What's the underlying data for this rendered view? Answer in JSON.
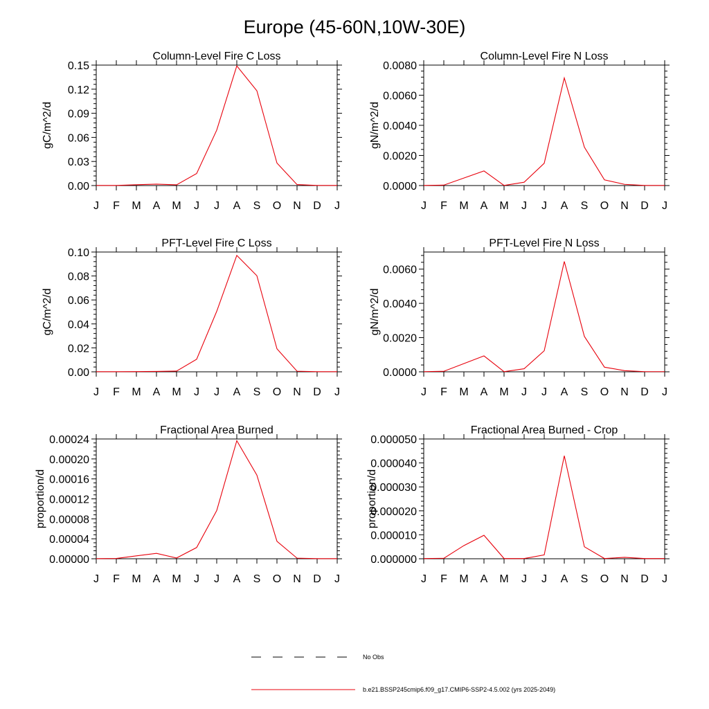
{
  "figure": {
    "title": "Europe (45-60N,10W-30E)",
    "line_color": "#e8000b",
    "axis_color": "#000000"
  },
  "chart_data": [
    {
      "type": "line",
      "title": "Column-Level Fire C Loss",
      "ylabel": "gC/m^2/d",
      "xlabel": "",
      "categories": [
        "J",
        "F",
        "M",
        "A",
        "M",
        "J",
        "J",
        "A",
        "S",
        "O",
        "N",
        "D",
        "J"
      ],
      "ylim": [
        0,
        0.15
      ],
      "yticks": [
        0,
        0.03,
        0.06,
        0.09,
        0.12,
        0.15
      ],
      "ytick_labels": [
        "0.00",
        "0.03",
        "0.06",
        "0.09",
        "0.12",
        "0.15"
      ],
      "series": [
        {
          "name": "b.e21.BSSP245cmip6.f09_g17.CMIP6-SSP2-4.5.002 (yrs 2025-2049)",
          "values": [
            0.0002,
            0.0002,
            0.001,
            0.0018,
            0.0009,
            0.015,
            0.069,
            0.149,
            0.118,
            0.028,
            0.0012,
            0.0002,
            0.0002
          ]
        }
      ]
    },
    {
      "type": "line",
      "title": "Column-Level Fire N Loss",
      "ylabel": "gN/m^2/d",
      "xlabel": "",
      "categories": [
        "J",
        "F",
        "M",
        "A",
        "M",
        "J",
        "J",
        "A",
        "S",
        "O",
        "N",
        "D",
        "J"
      ],
      "ylim": [
        0,
        0.008
      ],
      "yticks": [
        0,
        0.002,
        0.004,
        0.006,
        0.008
      ],
      "ytick_labels": [
        "0.0000",
        "0.0020",
        "0.0040",
        "0.0060",
        "0.0080"
      ],
      "series": [
        {
          "name": "b.e21.BSSP245cmip6.f09_g17.CMIP6-SSP2-4.5.002 (yrs 2025-2049)",
          "values": [
            1e-05,
            3e-05,
            0.0005,
            0.00097,
            1e-05,
            0.00022,
            0.00148,
            0.00715,
            0.00255,
            0.00038,
            8e-05,
            1e-05,
            1e-05
          ]
        }
      ]
    },
    {
      "type": "line",
      "title": "PFT-Level Fire C Loss",
      "ylabel": "gC/m^2/d",
      "xlabel": "",
      "categories": [
        "J",
        "F",
        "M",
        "A",
        "M",
        "J",
        "J",
        "A",
        "S",
        "O",
        "N",
        "D",
        "J"
      ],
      "ylim": [
        0,
        0.1
      ],
      "yticks": [
        0,
        0.02,
        0.04,
        0.06,
        0.08,
        0.1
      ],
      "ytick_labels": [
        "0.00",
        "0.02",
        "0.04",
        "0.06",
        "0.08",
        "0.10"
      ],
      "series": [
        {
          "name": "b.e21.BSSP245cmip6.f09_g17.CMIP6-SSP2-4.5.002 (yrs 2025-2049)",
          "values": [
            0.0001,
            0.0001,
            0.0002,
            0.0003,
            0.0006,
            0.0105,
            0.0505,
            0.0972,
            0.0802,
            0.0192,
            0.0005,
            0.0001,
            0.0001
          ]
        }
      ]
    },
    {
      "type": "line",
      "title": "PFT-Level Fire N Loss",
      "ylabel": "gN/m^2/d",
      "xlabel": "",
      "categories": [
        "J",
        "F",
        "M",
        "A",
        "M",
        "J",
        "J",
        "A",
        "S",
        "O",
        "N",
        "D",
        "J"
      ],
      "ylim": [
        0,
        0.007
      ],
      "yticks": [
        0,
        0.002,
        0.004,
        0.006
      ],
      "ytick_labels": [
        "0.0000",
        "0.0020",
        "0.0040",
        "0.0060"
      ],
      "series": [
        {
          "name": "b.e21.BSSP245cmip6.f09_g17.CMIP6-SSP2-4.5.002 (yrs 2025-2049)",
          "values": [
            1e-05,
            3e-05,
            0.00048,
            0.00093,
            1e-05,
            0.00018,
            0.00123,
            0.00645,
            0.00207,
            0.00027,
            7e-05,
            1e-05,
            1e-05
          ]
        }
      ]
    },
    {
      "type": "line",
      "title": "Fractional Area Burned",
      "ylabel": "proportion/d",
      "xlabel": "",
      "categories": [
        "J",
        "F",
        "M",
        "A",
        "M",
        "J",
        "J",
        "A",
        "S",
        "O",
        "N",
        "D",
        "J"
      ],
      "ylim": [
        0,
        0.00024
      ],
      "yticks": [
        0,
        4e-05,
        8e-05,
        0.00012,
        0.00016,
        0.0002,
        0.00024
      ],
      "ytick_labels": [
        "0.00000",
        "0.00004",
        "0.00008",
        "0.00012",
        "0.00016",
        "0.00020",
        "0.00024"
      ],
      "series": [
        {
          "name": "b.e21.BSSP245cmip6.f09_g17.CMIP6-SSP2-4.5.002 (yrs 2025-2049)",
          "values": [
            2e-07,
            6e-07,
            5.8e-06,
            1.08e-05,
            1.5e-06,
            2.25e-05,
            9.65e-05,
            0.0002365,
            0.0001675,
            3.5e-05,
            1.2e-06,
            3e-07,
            3e-07
          ]
        }
      ]
    },
    {
      "type": "line",
      "title": "Fractional Area Burned - Crop",
      "ylabel": "proportion/d",
      "xlabel": "",
      "categories": [
        "J",
        "F",
        "M",
        "A",
        "M",
        "J",
        "J",
        "A",
        "S",
        "O",
        "N",
        "D",
        "J"
      ],
      "ylim": [
        0,
        5e-05
      ],
      "yticks": [
        0,
        1e-05,
        2e-05,
        3e-05,
        4e-05,
        5e-05
      ],
      "ytick_labels": [
        "0.000000",
        "0.000010",
        "0.000020",
        "0.000030",
        "0.000040",
        "0.000050"
      ],
      "series": [
        {
          "name": "b.e21.BSSP245cmip6.f09_g17.CMIP6-SSP2-4.5.002 (yrs 2025-2049)",
          "values": [
            1e-07,
            2e-07,
            5.5e-06,
            9.8e-06,
            1e-07,
            1e-07,
            1.6e-06,
            4.3e-05,
            5e-06,
            1e-07,
            6e-07,
            1e-07,
            1e-07
          ]
        }
      ]
    }
  ],
  "legend": {
    "items": [
      {
        "label": "No Obs",
        "style": "dashed",
        "color": "#000000"
      },
      {
        "label": "b.e21.BSSP245cmip6.f09_g17.CMIP6-SSP2-4.5.002 (yrs 2025-2049)",
        "style": "solid",
        "color": "#e8000b"
      }
    ]
  }
}
